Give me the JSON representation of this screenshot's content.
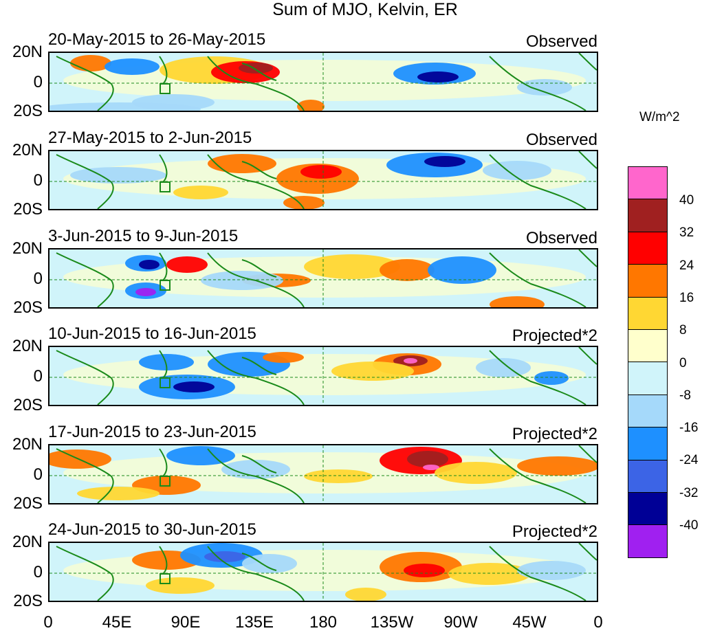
{
  "title": "Sum of MJO, Kelvin, ER",
  "units": "W/m^2",
  "lat_labels": [
    "20N",
    "0",
    "20S"
  ],
  "lon_labels": [
    "0",
    "45E",
    "90E",
    "135E",
    "180",
    "135W",
    "90W",
    "45W",
    "0"
  ],
  "legend": {
    "colors": [
      "#ff66cc",
      "#a02020",
      "#ff0000",
      "#ff7700",
      "#ffd733",
      "#ffffcc",
      "#d0f4fa",
      "#a5d9fa",
      "#1e90ff",
      "#3c64e6",
      "#000096",
      "#a020f0"
    ],
    "labels": [
      "40",
      "32",
      "24",
      "16",
      "8",
      "0",
      "-8",
      "-16",
      "-24",
      "-32",
      "-40"
    ]
  },
  "panels": [
    {
      "date": "20-May-2015 to 26-May-2015",
      "status": "Observed"
    },
    {
      "date": "27-May-2015 to 2-Jun-2015",
      "status": "Observed"
    },
    {
      "date": "3-Jun-2015 to 9-Jun-2015",
      "status": "Observed"
    },
    {
      "date": "10-Jun-2015 to 16-Jun-2015",
      "status": "Projected*2"
    },
    {
      "date": "17-Jun-2015 to 23-Jun-2015",
      "status": "Projected*2"
    },
    {
      "date": "24-Jun-2015 to 30-Jun-2015",
      "status": "Projected*2"
    }
  ]
}
